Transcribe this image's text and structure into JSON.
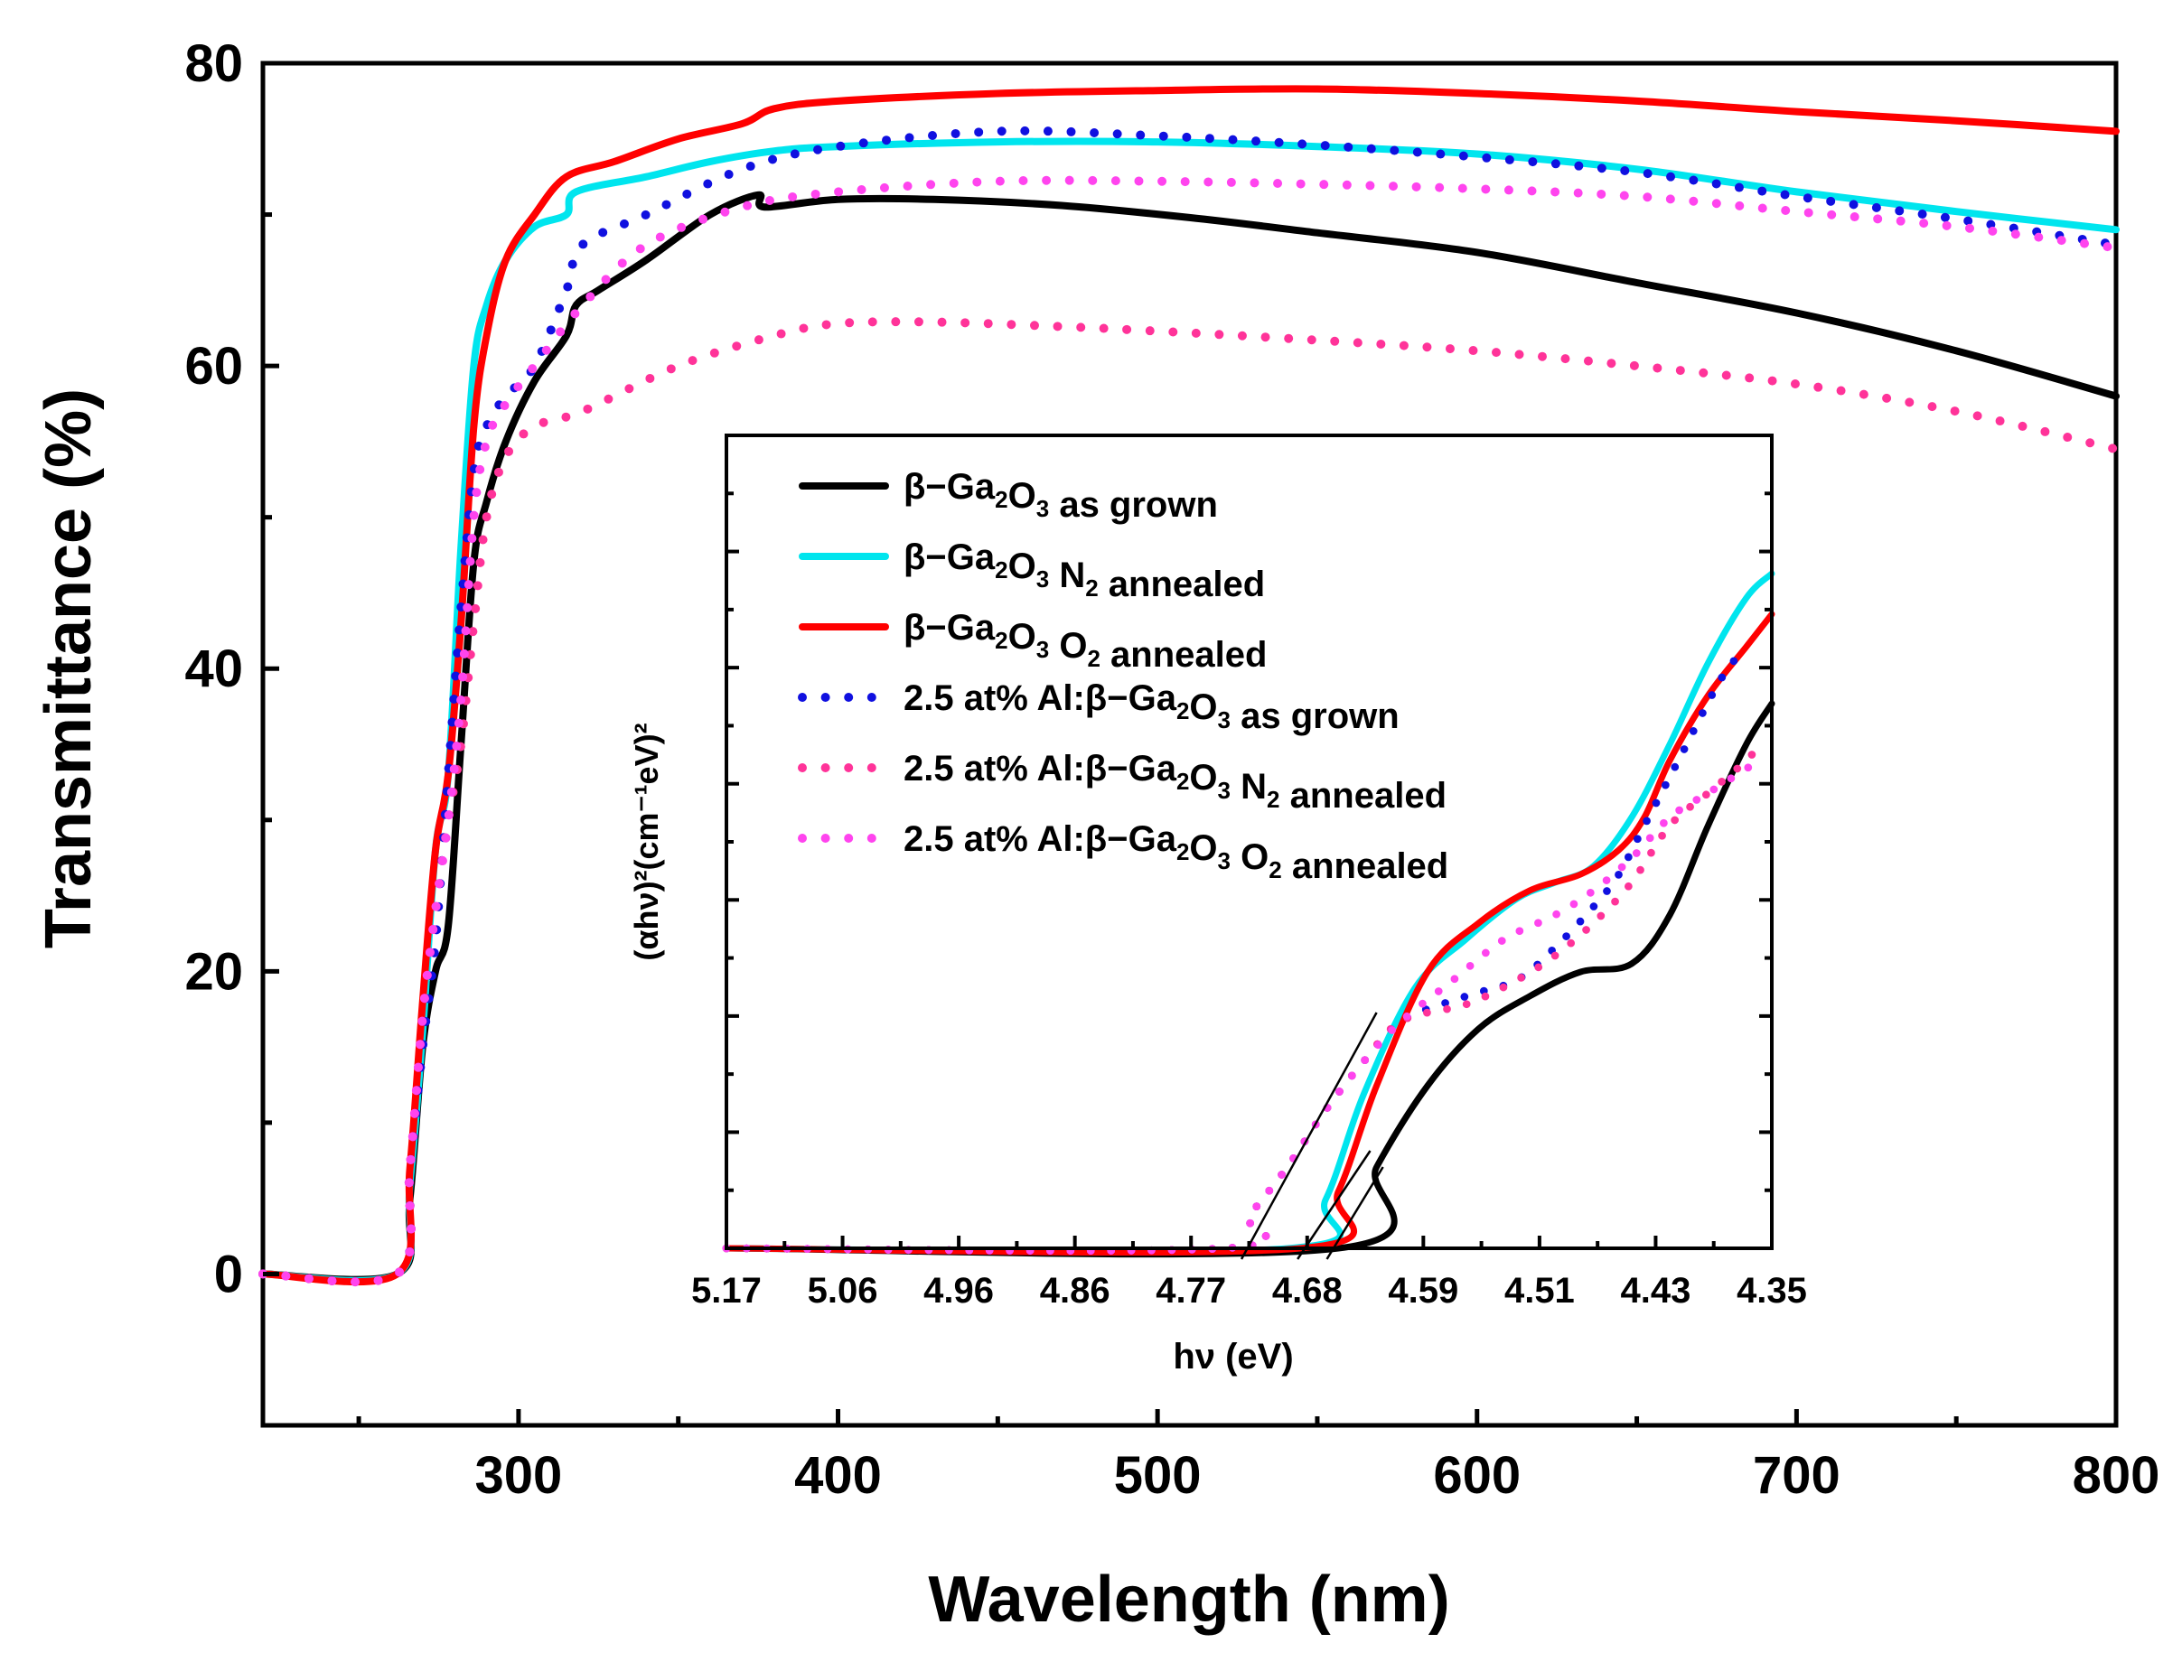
{
  "chart_data": [
    {
      "type": "line",
      "xlabel": "Wavelength (nm)",
      "ylabel": "Transmittance (%)",
      "xlim": [
        220,
        800
      ],
      "ylim": [
        -10,
        80
      ],
      "x_ticks": [
        "300",
        "400",
        "500",
        "600",
        "700",
        "800"
      ],
      "y_ticks": [
        "0",
        "20",
        "40",
        "60",
        "80"
      ],
      "grid": false,
      "series": [
        {
          "name": "β−Ga2O3 as grown",
          "color": "#000000",
          "style": "solid",
          "points": [
            [
              220,
              0
            ],
            [
              262,
              0
            ],
            [
              266,
              5
            ],
            [
              270,
              15
            ],
            [
              274,
              20
            ],
            [
              278,
              23
            ],
            [
              282,
              35
            ],
            [
              286,
              47
            ],
            [
              290,
              51
            ],
            [
              296,
              55
            ],
            [
              305,
              59
            ],
            [
              315,
              62
            ],
            [
              318,
              64
            ],
            [
              325,
              65
            ],
            [
              340,
              67
            ],
            [
              360,
              70
            ],
            [
              375,
              71.3
            ],
            [
              377,
              70.5
            ],
            [
              400,
              71
            ],
            [
              430,
              71
            ],
            [
              470,
              70.6
            ],
            [
              510,
              69.8
            ],
            [
              550,
              68.8
            ],
            [
              600,
              67.5
            ],
            [
              650,
              65.5
            ],
            [
              700,
              63.5
            ],
            [
              750,
              61
            ],
            [
              800,
              58
            ]
          ]
        },
        {
          "name": "β−Ga2O3 N2 annealed",
          "color": "#00E5EE",
          "style": "solid",
          "points": [
            [
              220,
              0
            ],
            [
              262,
              0
            ],
            [
              266,
              6
            ],
            [
              270,
              16
            ],
            [
              274,
              28
            ],
            [
              278,
              33
            ],
            [
              282,
              48
            ],
            [
              286,
              60
            ],
            [
              290,
              64
            ],
            [
              296,
              67
            ],
            [
              305,
              69.2
            ],
            [
              315,
              70
            ],
            [
              318,
              71.5
            ],
            [
              340,
              72.5
            ],
            [
              360,
              73.5
            ],
            [
              380,
              74.2
            ],
            [
              400,
              74.5
            ],
            [
              450,
              74.8
            ],
            [
              500,
              74.8
            ],
            [
              550,
              74.5
            ],
            [
              600,
              74
            ],
            [
              650,
              73
            ],
            [
              700,
              71.5
            ],
            [
              750,
              70.2
            ],
            [
              800,
              69
            ]
          ]
        },
        {
          "name": "β−Ga2O3 O2 annealed",
          "color": "#FF0000",
          "style": "solid",
          "points": [
            [
              220,
              0
            ],
            [
              262,
              0
            ],
            [
              266,
              7
            ],
            [
              270,
              18
            ],
            [
              274,
              28
            ],
            [
              278,
              33
            ],
            [
              282,
              43
            ],
            [
              286,
              56
            ],
            [
              290,
              62
            ],
            [
              296,
              67
            ],
            [
              305,
              70
            ],
            [
              315,
              72.5
            ],
            [
              330,
              73.5
            ],
            [
              350,
              75
            ],
            [
              370,
              76
            ],
            [
              380,
              77
            ],
            [
              400,
              77.5
            ],
            [
              450,
              78
            ],
            [
              500,
              78.2
            ],
            [
              550,
              78.3
            ],
            [
              600,
              78
            ],
            [
              650,
              77.5
            ],
            [
              700,
              76.8
            ],
            [
              750,
              76.2
            ],
            [
              800,
              75.5
            ]
          ]
        },
        {
          "name": "2.5 at% Al:β−Ga2O3 as grown",
          "color": "#1010E0",
          "style": "dotted",
          "points": [
            [
              220,
              0
            ],
            [
              262,
              0
            ],
            [
              266,
              7
            ],
            [
              270,
              15
            ],
            [
              274,
              22
            ],
            [
              278,
              33
            ],
            [
              282,
              44
            ],
            [
              286,
              53
            ],
            [
              290,
              56
            ],
            [
              296,
              58
            ],
            [
              305,
              60
            ],
            [
              315,
              65
            ],
            [
              320,
              68
            ],
            [
              340,
              70
            ],
            [
              370,
              73
            ],
            [
              400,
              74.5
            ],
            [
              450,
              75.5
            ],
            [
              500,
              75.2
            ],
            [
              550,
              74.6
            ],
            [
              600,
              73.8
            ],
            [
              650,
              72.8
            ],
            [
              700,
              71.2
            ],
            [
              750,
              69.7
            ],
            [
              800,
              68
            ]
          ]
        },
        {
          "name": "2.5 at% Al:β−Ga2O3 N2 annealed",
          "color": "#FF3399",
          "style": "dotted",
          "points": [
            [
              220,
              0
            ],
            [
              262,
              0
            ],
            [
              266,
              7
            ],
            [
              270,
              17
            ],
            [
              274,
              24
            ],
            [
              278,
              30
            ],
            [
              282,
              35
            ],
            [
              286,
              43
            ],
            [
              290,
              50
            ],
            [
              296,
              54
            ],
            [
              305,
              56
            ],
            [
              320,
              57
            ],
            [
              350,
              60
            ],
            [
              380,
              62
            ],
            [
              400,
              62.8
            ],
            [
              430,
              62.9
            ],
            [
              470,
              62.6
            ],
            [
              500,
              62.3
            ],
            [
              550,
              61.7
            ],
            [
              600,
              61
            ],
            [
              650,
              60
            ],
            [
              700,
              58.8
            ],
            [
              750,
              57
            ],
            [
              800,
              54.5
            ]
          ]
        },
        {
          "name": "2.5 at% Al:β−Ga2O3 O2 annealed",
          "color": "#FF44EE",
          "style": "dotted",
          "points": [
            [
              220,
              0
            ],
            [
              262,
              0
            ],
            [
              266,
              7
            ],
            [
              270,
              17
            ],
            [
              274,
              24
            ],
            [
              278,
              30
            ],
            [
              282,
              38
            ],
            [
              286,
              50
            ],
            [
              290,
              55
            ],
            [
              296,
              57.5
            ],
            [
              305,
              60
            ],
            [
              320,
              64
            ],
            [
              340,
              68
            ],
            [
              370,
              70.5
            ],
            [
              400,
              71.5
            ],
            [
              450,
              72.2
            ],
            [
              500,
              72.2
            ],
            [
              550,
              72
            ],
            [
              600,
              71.7
            ],
            [
              650,
              71.2
            ],
            [
              700,
              70.2
            ],
            [
              750,
              69.2
            ],
            [
              800,
              67.8
            ]
          ]
        }
      ]
    },
    {
      "type": "line",
      "xlabel": "hν (eV)",
      "ylabel": "(αhν)²(cm⁻¹eV)²",
      "x_ticks": [
        "5.17",
        "5.06",
        "4.96",
        "4.86",
        "4.77",
        "4.68",
        "4.59",
        "4.51",
        "4.43",
        "4.35"
      ],
      "xlim": [
        5.17,
        4.35
      ],
      "ylim": [
        0,
        1
      ],
      "y_tick_labels": false,
      "legend_position": "top-left",
      "series": [
        {
          "name": "β−Ga2O3 as grown",
          "color": "#000000",
          "style": "solid",
          "points": [
            [
              5.17,
              0
            ],
            [
              4.69,
              0
            ],
            [
              4.66,
              0.1
            ],
            [
              4.62,
              0.2
            ],
            [
              4.58,
              0.27
            ],
            [
              4.54,
              0.31
            ],
            [
              4.5,
              0.34
            ],
            [
              4.46,
              0.35
            ],
            [
              4.43,
              0.41
            ],
            [
              4.4,
              0.52
            ],
            [
              4.37,
              0.62
            ],
            [
              4.35,
              0.67
            ]
          ]
        },
        {
          "name": "β−Ga2O3 N2 annealed",
          "color": "#00E5EE",
          "style": "solid",
          "points": [
            [
              5.17,
              0
            ],
            [
              4.73,
              0
            ],
            [
              4.7,
              0.06
            ],
            [
              4.67,
              0.19
            ],
            [
              4.63,
              0.32
            ],
            [
              4.59,
              0.38
            ],
            [
              4.55,
              0.43
            ],
            [
              4.52,
              0.45
            ],
            [
              4.49,
              0.47
            ],
            [
              4.46,
              0.53
            ],
            [
              4.43,
              0.62
            ],
            [
              4.4,
              0.72
            ],
            [
              4.37,
              0.8
            ],
            [
              4.35,
              0.83
            ]
          ]
        },
        {
          "name": "β−Ga2O3 O2 annealed",
          "color": "#FF0000",
          "style": "solid",
          "points": [
            [
              5.17,
              0
            ],
            [
              4.72,
              0
            ],
            [
              4.69,
              0.07
            ],
            [
              4.66,
              0.2
            ],
            [
              4.62,
              0.34
            ],
            [
              4.58,
              0.4
            ],
            [
              4.54,
              0.44
            ],
            [
              4.5,
              0.46
            ],
            [
              4.47,
              0.49
            ],
            [
              4.45,
              0.53
            ],
            [
              4.43,
              0.6
            ],
            [
              4.4,
              0.68
            ],
            [
              4.37,
              0.74
            ],
            [
              4.35,
              0.78
            ]
          ]
        },
        {
          "name": "2.5 at% Al:β−Ga2O3 as grown",
          "color": "#1010E0",
          "style": "dotted",
          "points": [
            [
              5.17,
              0
            ],
            [
              4.78,
              0
            ],
            [
              4.76,
              0.04
            ],
            [
              4.73,
              0.1
            ],
            [
              4.7,
              0.17
            ],
            [
              4.67,
              0.23
            ],
            [
              4.64,
              0.28
            ],
            [
              4.59,
              0.31
            ],
            [
              4.55,
              0.33
            ],
            [
              4.52,
              0.37
            ],
            [
              4.49,
              0.42
            ],
            [
              4.47,
              0.46
            ],
            [
              4.45,
              0.52
            ],
            [
              4.42,
              0.61
            ],
            [
              4.39,
              0.7
            ],
            [
              4.37,
              0.74
            ]
          ]
        },
        {
          "name": "2.5 at% Al:β−Ga2O3 N2 annealed",
          "color": "#FF3399",
          "style": "dotted",
          "points": [
            [
              5.17,
              0
            ],
            [
              4.78,
              0
            ],
            [
              4.76,
              0.04
            ],
            [
              4.73,
              0.1
            ],
            [
              4.7,
              0.17
            ],
            [
              4.67,
              0.23
            ],
            [
              4.64,
              0.28
            ],
            [
              4.59,
              0.3
            ],
            [
              4.55,
              0.33
            ],
            [
              4.52,
              0.36
            ],
            [
              4.49,
              0.4
            ],
            [
              4.46,
              0.45
            ],
            [
              4.43,
              0.52
            ],
            [
              4.4,
              0.56
            ],
            [
              4.37,
              0.6
            ],
            [
              4.36,
              0.62
            ]
          ]
        },
        {
          "name": "2.5 at% Al:β−Ga2O3 O2 annealed",
          "color": "#FF44EE",
          "style": "dotted",
          "points": [
            [
              5.17,
              0
            ],
            [
              4.78,
              0
            ],
            [
              4.76,
              0.04
            ],
            [
              4.73,
              0.1
            ],
            [
              4.7,
              0.17
            ],
            [
              4.67,
              0.23
            ],
            [
              4.64,
              0.28
            ],
            [
              4.6,
              0.33
            ],
            [
              4.56,
              0.38
            ],
            [
              4.52,
              0.41
            ],
            [
              4.49,
              0.44
            ],
            [
              4.46,
              0.48
            ],
            [
              4.43,
              0.53
            ],
            [
              4.4,
              0.56
            ],
            [
              4.37,
              0.59
            ],
            [
              4.36,
              0.6
            ]
          ]
        }
      ]
    }
  ]
}
